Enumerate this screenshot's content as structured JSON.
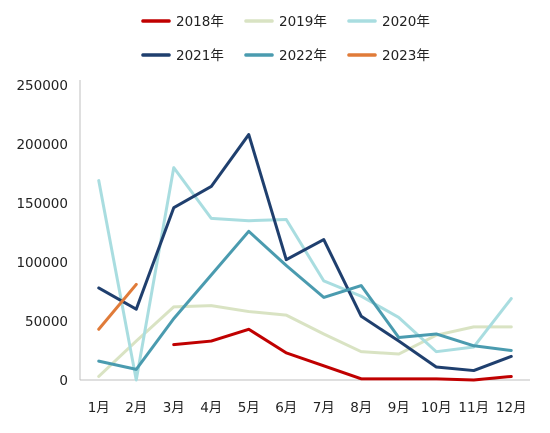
{
  "chart_data": {
    "type": "line",
    "title": "",
    "xlabel": "",
    "ylabel": "",
    "categories": [
      "1月",
      "2月",
      "3月",
      "4月",
      "5月",
      "6月",
      "7月",
      "8月",
      "9月",
      "10月",
      "11月",
      "12月"
    ],
    "ylim": [
      0,
      250000
    ],
    "yticks": [
      "0",
      "50000",
      "100000",
      "150000",
      "200000",
      "250000"
    ],
    "grid": false,
    "legend_position": "top",
    "series": [
      {
        "name": "2018年",
        "color": "#C00000",
        "values": [
          null,
          null,
          30000,
          33000,
          43000,
          23000,
          12000,
          1000,
          1000,
          1000,
          0,
          3000
        ]
      },
      {
        "name": "2019年",
        "color": "#D9E3C3",
        "values": [
          3000,
          33000,
          62000,
          63000,
          58000,
          55000,
          39000,
          24000,
          22000,
          38000,
          45000,
          45000
        ]
      },
      {
        "name": "2020年",
        "color": "#A9DDE0",
        "values": [
          169000,
          0,
          180000,
          137000,
          135000,
          136000,
          84000,
          71000,
          53000,
          24000,
          28000,
          69000
        ]
      },
      {
        "name": "2021年",
        "color": "#1F3F6E",
        "values": [
          78000,
          60000,
          146000,
          164000,
          208000,
          102000,
          119000,
          54000,
          33000,
          11000,
          8000,
          20000
        ]
      },
      {
        "name": "2022年",
        "color": "#4A9BAF",
        "values": [
          16000,
          9000,
          52000,
          89000,
          126000,
          97000,
          70000,
          80000,
          36000,
          39000,
          29000,
          25000
        ]
      },
      {
        "name": "2023年",
        "color": "#E07B39",
        "values": [
          43000,
          81000,
          null,
          null,
          null,
          null,
          null,
          null,
          null,
          null,
          null,
          null
        ]
      }
    ]
  }
}
